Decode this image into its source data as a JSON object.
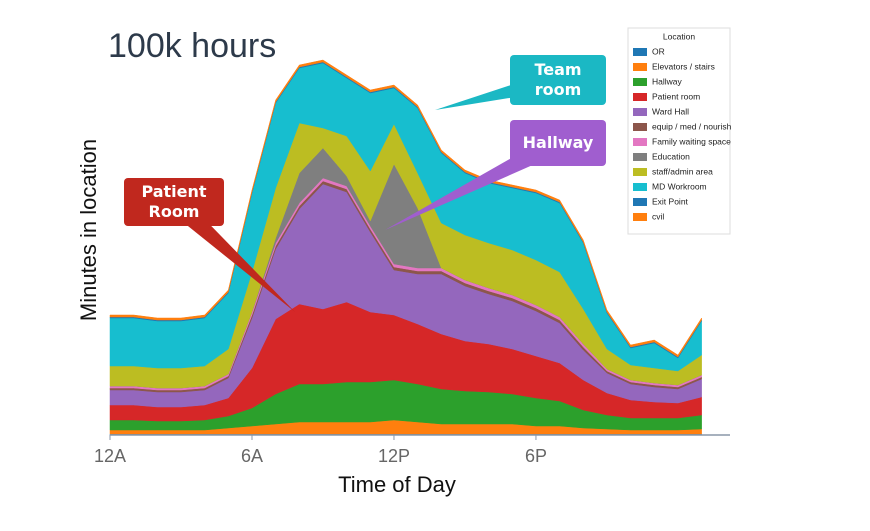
{
  "chart_data": {
    "type": "stacked_area",
    "title": "100k hours",
    "x_label": "Time of Day",
    "y_label": "Minutes in location",
    "x": [
      0,
      1,
      2,
      3,
      4,
      5,
      6,
      7,
      8,
      9,
      10,
      11,
      12,
      13,
      14,
      15,
      16,
      17,
      18,
      19,
      20,
      21,
      22,
      23,
      24,
      25
    ],
    "xlim": [
      0,
      26.2
    ],
    "xticks": [
      {
        "value": 0,
        "label": "12A"
      },
      {
        "value": 6,
        "label": "6A"
      },
      {
        "value": 12,
        "label": "12P"
      },
      {
        "value": 18,
        "label": "6P"
      }
    ],
    "ylim": [
      0,
      400
    ],
    "legend": "upper right",
    "legend_title": "Location",
    "series": [
      {
        "name": "OR",
        "color": "#1f77b4",
        "values": [
          1,
          1,
          1,
          1,
          1,
          1,
          1,
          1,
          1,
          1,
          1,
          1,
          1,
          1,
          1,
          1,
          1,
          1,
          1,
          1,
          1,
          1,
          1,
          1,
          1,
          1
        ]
      },
      {
        "name": "Elevators / stairs",
        "color": "#ff7f0e",
        "values": [
          4,
          4,
          4,
          4,
          4,
          6,
          8,
          10,
          12,
          12,
          12,
          12,
          14,
          12,
          10,
          10,
          10,
          10,
          8,
          8,
          6,
          5,
          4,
          4,
          4,
          5
        ]
      },
      {
        "name": "Hallway",
        "color": "#2ca02c",
        "values": [
          10,
          10,
          9,
          9,
          10,
          12,
          18,
          30,
          38,
          38,
          40,
          40,
          40,
          38,
          35,
          33,
          32,
          30,
          28,
          25,
          18,
          14,
          12,
          12,
          12,
          14
        ]
      },
      {
        "name": "Patient room",
        "color": "#d62728",
        "values": [
          15,
          15,
          14,
          14,
          15,
          18,
          40,
          75,
          80,
          75,
          80,
          70,
          65,
          60,
          55,
          50,
          48,
          45,
          42,
          38,
          30,
          22,
          18,
          16,
          15,
          18
        ]
      },
      {
        "name": "Ward Hall",
        "color": "#9467bd",
        "values": [
          15,
          15,
          15,
          15,
          15,
          20,
          50,
          70,
          95,
          125,
          110,
          80,
          45,
          50,
          60,
          55,
          50,
          48,
          45,
          40,
          30,
          20,
          16,
          15,
          14,
          18
        ]
      },
      {
        "name": "equip / med / nourish",
        "color": "#8c564b",
        "values": [
          2,
          2,
          2,
          2,
          2,
          2,
          3,
          3,
          3,
          3,
          3,
          3,
          3,
          3,
          3,
          3,
          3,
          3,
          3,
          3,
          3,
          2,
          2,
          2,
          2,
          2
        ]
      },
      {
        "name": "Family waiting space",
        "color": "#e377c2",
        "values": [
          2,
          2,
          2,
          2,
          2,
          2,
          3,
          3,
          3,
          3,
          3,
          3,
          3,
          3,
          3,
          3,
          3,
          3,
          3,
          3,
          3,
          2,
          2,
          2,
          2,
          2
        ]
      },
      {
        "name": "Education",
        "color": "#7f7f7f",
        "values": [
          0,
          0,
          0,
          0,
          0,
          0,
          0,
          5,
          30,
          30,
          10,
          5,
          100,
          60,
          0,
          0,
          0,
          0,
          0,
          0,
          0,
          0,
          0,
          0,
          0,
          0
        ]
      },
      {
        "name": "staff/admin area",
        "color": "#bcbd22",
        "values": [
          20,
          20,
          20,
          20,
          20,
          25,
          40,
          50,
          50,
          20,
          40,
          50,
          40,
          35,
          45,
          45,
          45,
          45,
          45,
          45,
          35,
          20,
          15,
          15,
          14,
          20
        ]
      },
      {
        "name": "MD Workroom",
        "color": "#17becf",
        "values": [
          48,
          48,
          47,
          47,
          48,
          56,
          79,
          85,
          55,
          65,
          58,
          78,
          36,
          65,
          70,
          62,
          60,
          62,
          67,
          69,
          66,
          36,
          17,
          25,
          13,
          34
        ]
      },
      {
        "name": "Exit Point",
        "color": "#1f77b4",
        "values": [
          1,
          1,
          1,
          1,
          1,
          1,
          1,
          1,
          1,
          1,
          1,
          1,
          1,
          1,
          1,
          1,
          1,
          1,
          1,
          1,
          1,
          1,
          1,
          1,
          1,
          1
        ]
      },
      {
        "name": "cvil",
        "color": "#ff7f0e",
        "values": [
          2,
          2,
          2,
          2,
          2,
          2,
          2,
          2,
          2,
          2,
          2,
          2,
          2,
          2,
          2,
          2,
          2,
          2,
          2,
          2,
          2,
          2,
          2,
          2,
          2,
          2
        ]
      }
    ],
    "annotations": [
      {
        "text": "Team room",
        "color": "#1bb8c4"
      },
      {
        "text": "Hallway",
        "color": "#a05ecf"
      },
      {
        "text": "Patient Room",
        "color": "#c0281e"
      }
    ]
  }
}
